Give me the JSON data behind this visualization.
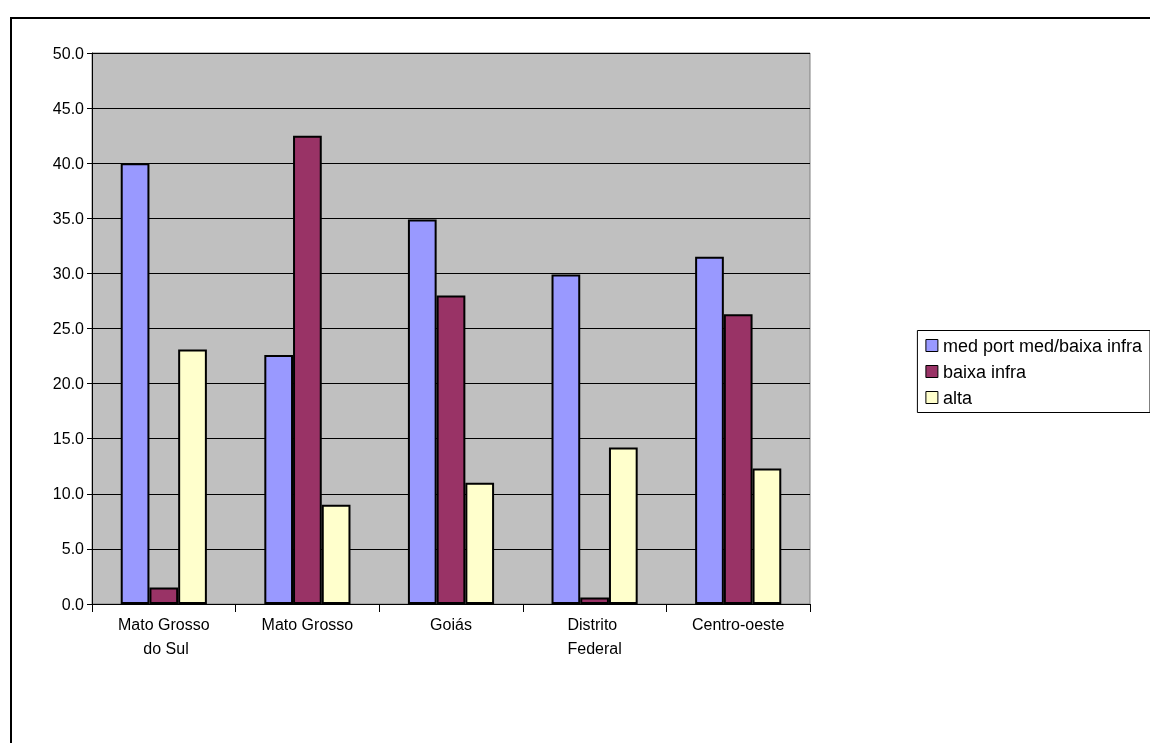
{
  "chart_data": {
    "type": "bar",
    "categories": [
      "Mato Grosso do Sul",
      "Mato Grosso",
      "Goiás",
      "Distrito Federal",
      "Centro-oeste"
    ],
    "series": [
      {
        "name": "med port med/baixa infra",
        "color": "#9999ff",
        "values": [
          40.0,
          22.6,
          34.9,
          29.9,
          31.5
        ]
      },
      {
        "name": "baixa infra",
        "color": "#993366",
        "values": [
          1.5,
          42.5,
          28.0,
          0.6,
          26.3
        ]
      },
      {
        "name": "alta",
        "color": "#ffffcc",
        "values": [
          23.1,
          9.0,
          11.0,
          14.2,
          12.3
        ]
      }
    ],
    "ylim": [
      0,
      50
    ],
    "yticks": [
      {
        "value": 0,
        "label": "0.0"
      },
      {
        "value": 5,
        "label": "5.0"
      },
      {
        "value": 10,
        "label": "10.0"
      },
      {
        "value": 15,
        "label": "15.0"
      },
      {
        "value": 20,
        "label": "20.0"
      },
      {
        "value": 25,
        "label": "25.0"
      },
      {
        "value": 30,
        "label": "30.0"
      },
      {
        "value": 35,
        "label": "35.0"
      },
      {
        "value": 40,
        "label": "40.0"
      },
      {
        "value": 45,
        "label": "45.0"
      },
      {
        "value": 50,
        "label": "50.0"
      }
    ],
    "grid": "y",
    "legend": "right"
  }
}
